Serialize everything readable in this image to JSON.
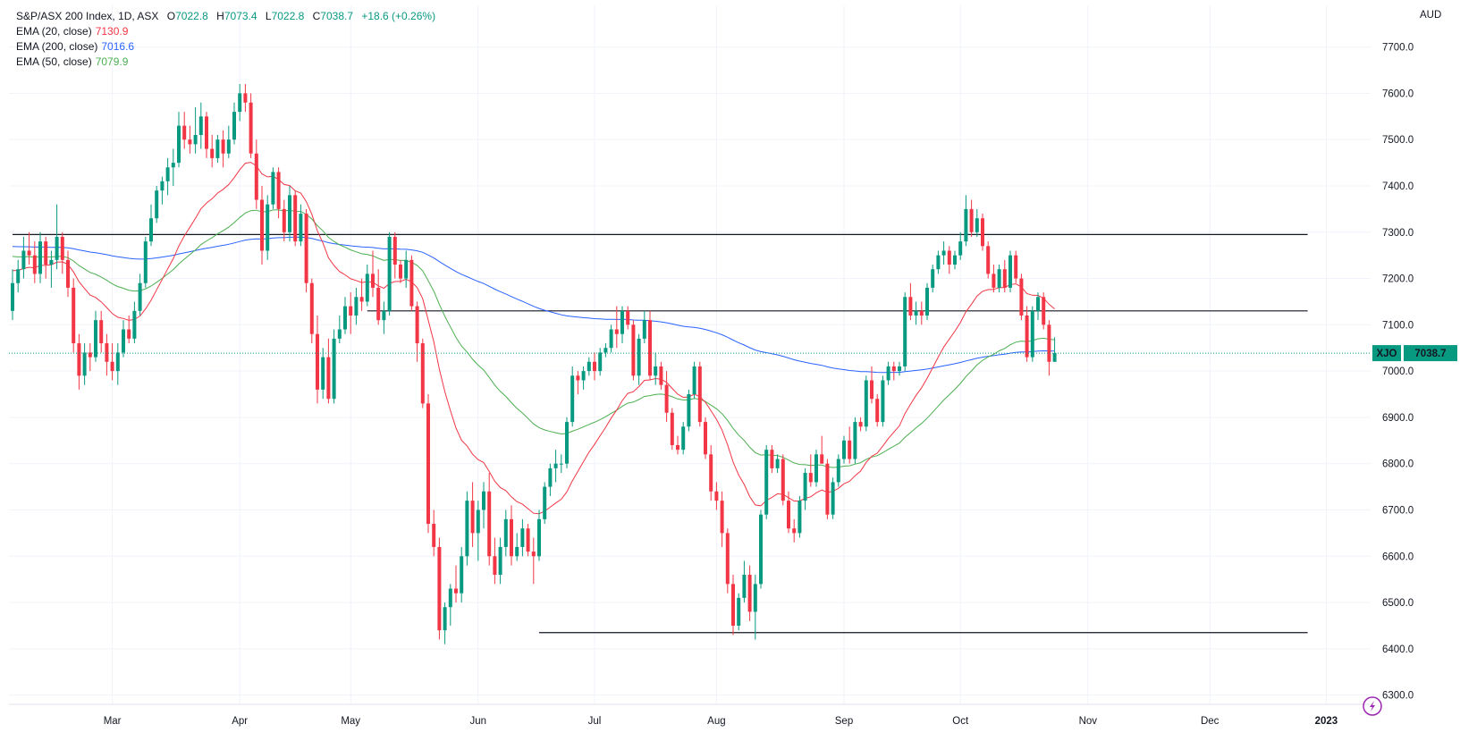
{
  "legend": {
    "title": "S&P/ASX 200 Index, 1D, ASX",
    "ohlc": {
      "o_label": "O",
      "o": "7022.8",
      "h_label": "H",
      "h": "7073.4",
      "l_label": "L",
      "l": "7022.8",
      "c_label": "C",
      "c": "7038.7",
      "change": "+18.6 (+0.26%)"
    },
    "indicators": [
      {
        "label": "EMA (20, close)",
        "value": "7130.9",
        "color": "#f23645"
      },
      {
        "label": "EMA (200, close)",
        "value": "7016.6",
        "color": "#2962ff"
      },
      {
        "label": "EMA (50, close)",
        "value": "7079.9",
        "color": "#4caf50"
      }
    ]
  },
  "chart_data": {
    "type": "candlestick",
    "currency": "AUD",
    "symbol_tag": "XJO",
    "last_price": "7038.7",
    "ylim": [
      6280,
      7790
    ],
    "y_ticks": [
      6300,
      6400,
      6500,
      6600,
      6700,
      6800,
      6900,
      7000,
      7100,
      7200,
      7300,
      7400,
      7500,
      7600,
      7700
    ],
    "x_labels": [
      {
        "label": "Mar",
        "day": 18
      },
      {
        "label": "Apr",
        "day": 41
      },
      {
        "label": "May",
        "day": 61
      },
      {
        "label": "Jun",
        "day": 84
      },
      {
        "label": "Jul",
        "day": 105
      },
      {
        "label": "Aug",
        "day": 127
      },
      {
        "label": "Sep",
        "day": 150
      },
      {
        "label": "Oct",
        "day": 171
      },
      {
        "label": "Nov",
        "day": 194
      },
      {
        "label": "Dec",
        "day": 216
      },
      {
        "label": "2023",
        "day": 237
      }
    ],
    "horizontal_lines": [
      {
        "y": 7295,
        "from": 0,
        "to": 233
      },
      {
        "y": 7130,
        "from": 64,
        "to": 233
      },
      {
        "y": 6435,
        "from": 95,
        "to": 233
      }
    ],
    "colors": {
      "up": "#089981",
      "down": "#f23645",
      "ema20": "#f23645",
      "ema50": "#4caf50",
      "ema200": "#2962ff",
      "grid": "#f0f3fa"
    },
    "candles": [
      [
        7130,
        7220,
        7110,
        7190
      ],
      [
        7190,
        7240,
        7170,
        7220
      ],
      [
        7220,
        7290,
        7200,
        7260
      ],
      [
        7260,
        7300,
        7230,
        7250
      ],
      [
        7250,
        7280,
        7190,
        7210
      ],
      [
        7210,
        7300,
        7190,
        7280
      ],
      [
        7280,
        7290,
        7200,
        7230
      ],
      [
        7230,
        7260,
        7180,
        7240
      ],
      [
        7240,
        7360,
        7220,
        7290
      ],
      [
        7290,
        7300,
        7210,
        7240
      ],
      [
        7240,
        7260,
        7160,
        7180
      ],
      [
        7180,
        7200,
        7040,
        7060
      ],
      [
        7060,
        7080,
        6960,
        6990
      ],
      [
        6990,
        7060,
        6970,
        7040
      ],
      [
        7040,
        7060,
        7000,
        7030
      ],
      [
        7030,
        7130,
        7020,
        7110
      ],
      [
        7110,
        7130,
        7040,
        7060
      ],
      [
        7060,
        7080,
        6990,
        7020
      ],
      [
        7020,
        7060,
        6980,
        7000
      ],
      [
        7000,
        7060,
        6970,
        7040
      ],
      [
        7040,
        7110,
        7030,
        7090
      ],
      [
        7090,
        7120,
        7060,
        7070
      ],
      [
        7070,
        7150,
        7060,
        7130
      ],
      [
        7130,
        7210,
        7120,
        7190
      ],
      [
        7190,
        7290,
        7180,
        7280
      ],
      [
        7280,
        7360,
        7270,
        7330
      ],
      [
        7330,
        7400,
        7320,
        7390
      ],
      [
        7390,
        7420,
        7360,
        7410
      ],
      [
        7410,
        7460,
        7380,
        7440
      ],
      [
        7440,
        7480,
        7400,
        7450
      ],
      [
        7450,
        7560,
        7440,
        7530
      ],
      [
        7530,
        7560,
        7480,
        7500
      ],
      [
        7500,
        7530,
        7470,
        7490
      ],
      [
        7490,
        7570,
        7470,
        7510
      ],
      [
        7510,
        7580,
        7480,
        7550
      ],
      [
        7550,
        7560,
        7460,
        7480
      ],
      [
        7480,
        7510,
        7440,
        7460
      ],
      [
        7460,
        7510,
        7450,
        7500
      ],
      [
        7500,
        7520,
        7440,
        7470
      ],
      [
        7470,
        7530,
        7460,
        7500
      ],
      [
        7500,
        7580,
        7490,
        7560
      ],
      [
        7560,
        7620,
        7540,
        7600
      ],
      [
        7600,
        7620,
        7560,
        7580
      ],
      [
        7580,
        7600,
        7460,
        7470
      ],
      [
        7470,
        7500,
        7350,
        7370
      ],
      [
        7370,
        7400,
        7230,
        7260
      ],
      [
        7260,
        7380,
        7240,
        7360
      ],
      [
        7360,
        7440,
        7350,
        7430
      ],
      [
        7430,
        7440,
        7330,
        7350
      ],
      [
        7350,
        7370,
        7280,
        7300
      ],
      [
        7300,
        7400,
        7280,
        7380
      ],
      [
        7380,
        7390,
        7270,
        7280
      ],
      [
        7280,
        7360,
        7270,
        7340
      ],
      [
        7340,
        7350,
        7170,
        7190
      ],
      [
        7190,
        7200,
        7060,
        7080
      ],
      [
        7080,
        7120,
        6930,
        6960
      ],
      [
        6960,
        7050,
        6940,
        7030
      ],
      [
        7030,
        7070,
        6930,
        6940
      ],
      [
        6940,
        7090,
        6930,
        7070
      ],
      [
        7070,
        7120,
        7060,
        7090
      ],
      [
        7090,
        7160,
        7080,
        7140
      ],
      [
        7140,
        7170,
        7080,
        7120
      ],
      [
        7120,
        7180,
        7100,
        7160
      ],
      [
        7160,
        7200,
        7130,
        7150
      ],
      [
        7150,
        7230,
        7140,
        7210
      ],
      [
        7210,
        7260,
        7160,
        7180
      ],
      [
        7180,
        7220,
        7100,
        7110
      ],
      [
        7110,
        7150,
        7080,
        7130
      ],
      [
        7130,
        7300,
        7120,
        7290
      ],
      [
        7290,
        7300,
        7200,
        7230
      ],
      [
        7230,
        7240,
        7190,
        7200
      ],
      [
        7200,
        7260,
        7180,
        7240
      ],
      [
        7240,
        7250,
        7130,
        7140
      ],
      [
        7140,
        7150,
        7020,
        7060
      ],
      [
        7060,
        7070,
        6920,
        6930
      ],
      [
        6930,
        6950,
        6650,
        6670
      ],
      [
        6670,
        6700,
        6600,
        6620
      ],
      [
        6620,
        6640,
        6420,
        6440
      ],
      [
        6440,
        6500,
        6410,
        6490
      ],
      [
        6490,
        6540,
        6450,
        6530
      ],
      [
        6530,
        6580,
        6500,
        6520
      ],
      [
        6520,
        6620,
        6500,
        6600
      ],
      [
        6600,
        6740,
        6580,
        6720
      ],
      [
        6720,
        6760,
        6620,
        6650
      ],
      [
        6650,
        6720,
        6590,
        6700
      ],
      [
        6700,
        6760,
        6660,
        6740
      ],
      [
        6740,
        6780,
        6580,
        6600
      ],
      [
        6600,
        6640,
        6540,
        6560
      ],
      [
        6560,
        6640,
        6540,
        6620
      ],
      [
        6620,
        6700,
        6600,
        6680
      ],
      [
        6680,
        6710,
        6580,
        6600
      ],
      [
        6600,
        6650,
        6590,
        6620
      ],
      [
        6620,
        6680,
        6600,
        6660
      ],
      [
        6660,
        6670,
        6600,
        6610
      ],
      [
        6610,
        6640,
        6540,
        6600
      ],
      [
        6600,
        6700,
        6590,
        6680
      ],
      [
        6680,
        6760,
        6670,
        6750
      ],
      [
        6750,
        6800,
        6730,
        6790
      ],
      [
        6790,
        6830,
        6760,
        6800
      ],
      [
        6800,
        6820,
        6780,
        6800
      ],
      [
        6800,
        6900,
        6790,
        6890
      ],
      [
        6890,
        7010,
        6880,
        6990
      ],
      [
        6990,
        7000,
        6950,
        6980
      ],
      [
        6980,
        7010,
        6960,
        7000
      ],
      [
        7000,
        7030,
        6990,
        7020
      ],
      [
        7020,
        7040,
        6980,
        7000
      ],
      [
        7000,
        7050,
        6990,
        7040
      ],
      [
        7040,
        7060,
        7030,
        7050
      ],
      [
        7050,
        7100,
        7040,
        7090
      ],
      [
        7090,
        7140,
        7050,
        7080
      ],
      [
        7080,
        7140,
        7060,
        7130
      ],
      [
        7130,
        7140,
        7090,
        7100
      ],
      [
        7100,
        7110,
        6980,
        6990
      ],
      [
        6990,
        7080,
        6970,
        7070
      ],
      [
        7070,
        7130,
        7060,
        7110
      ],
      [
        7110,
        7130,
        6980,
        6990
      ],
      [
        6990,
        7040,
        6970,
        7010
      ],
      [
        7010,
        7020,
        6960,
        6970
      ],
      [
        6970,
        7000,
        6890,
        6910
      ],
      [
        6910,
        6920,
        6830,
        6840
      ],
      [
        6840,
        6860,
        6820,
        6830
      ],
      [
        6830,
        6890,
        6820,
        6880
      ],
      [
        6880,
        6960,
        6870,
        6950
      ],
      [
        6950,
        7020,
        6940,
        7010
      ],
      [
        7010,
        7020,
        6880,
        6890
      ],
      [
        6890,
        6900,
        6810,
        6820
      ],
      [
        6820,
        6840,
        6720,
        6740
      ],
      [
        6740,
        6760,
        6700,
        6720
      ],
      [
        6720,
        6740,
        6620,
        6650
      ],
      [
        6650,
        6660,
        6520,
        6540
      ],
      [
        6540,
        6560,
        6430,
        6450
      ],
      [
        6450,
        6520,
        6440,
        6510
      ],
      [
        6510,
        6590,
        6500,
        6560
      ],
      [
        6560,
        6580,
        6460,
        6480
      ],
      [
        6480,
        6560,
        6420,
        6540
      ],
      [
        6540,
        6700,
        6530,
        6690
      ],
      [
        6690,
        6840,
        6680,
        6830
      ],
      [
        6830,
        6840,
        6780,
        6790
      ],
      [
        6790,
        6820,
        6780,
        6810
      ],
      [
        6810,
        6820,
        6710,
        6720
      ],
      [
        6720,
        6740,
        6650,
        6660
      ],
      [
        6660,
        6680,
        6630,
        6650
      ],
      [
        6650,
        6730,
        6640,
        6720
      ],
      [
        6720,
        6790,
        6700,
        6780
      ],
      [
        6780,
        6820,
        6750,
        6760
      ],
      [
        6760,
        6830,
        6750,
        6820
      ],
      [
        6820,
        6860,
        6800,
        6800
      ],
      [
        6800,
        6810,
        6680,
        6690
      ],
      [
        6690,
        6770,
        6680,
        6760
      ],
      [
        6760,
        6820,
        6750,
        6810
      ],
      [
        6810,
        6860,
        6800,
        6850
      ],
      [
        6850,
        6880,
        6800,
        6810
      ],
      [
        6810,
        6900,
        6800,
        6890
      ],
      [
        6890,
        6900,
        6870,
        6880
      ],
      [
        6880,
        6990,
        6870,
        6980
      ],
      [
        6980,
        7010,
        6930,
        6940
      ],
      [
        6940,
        6950,
        6880,
        6890
      ],
      [
        6890,
        6990,
        6880,
        6980
      ],
      [
        6980,
        7020,
        6970,
        7010
      ],
      [
        7010,
        7020,
        6980,
        7000
      ],
      [
        7000,
        7020,
        6990,
        7010
      ],
      [
        7010,
        7170,
        7000,
        7160
      ],
      [
        7160,
        7190,
        7110,
        7120
      ],
      [
        7120,
        7150,
        7100,
        7130
      ],
      [
        7130,
        7150,
        7100,
        7120
      ],
      [
        7120,
        7190,
        7110,
        7180
      ],
      [
        7180,
        7230,
        7170,
        7220
      ],
      [
        7220,
        7260,
        7210,
        7250
      ],
      [
        7250,
        7280,
        7230,
        7260
      ],
      [
        7260,
        7270,
        7210,
        7230
      ],
      [
        7230,
        7260,
        7220,
        7250
      ],
      [
        7250,
        7300,
        7240,
        7280
      ],
      [
        7280,
        7380,
        7270,
        7350
      ],
      [
        7350,
        7370,
        7290,
        7300
      ],
      [
        7300,
        7350,
        7290,
        7330
      ],
      [
        7330,
        7340,
        7260,
        7270
      ],
      [
        7270,
        7280,
        7200,
        7210
      ],
      [
        7210,
        7230,
        7170,
        7180
      ],
      [
        7180,
        7230,
        7170,
        7220
      ],
      [
        7220,
        7240,
        7170,
        7180
      ],
      [
        7180,
        7260,
        7170,
        7250
      ],
      [
        7250,
        7260,
        7190,
        7200
      ],
      [
        7200,
        7210,
        7110,
        7120
      ],
      [
        7120,
        7140,
        7020,
        7030
      ],
      [
        7030,
        7140,
        7020,
        7130
      ],
      [
        7130,
        7170,
        7110,
        7160
      ],
      [
        7160,
        7170,
        7090,
        7100
      ],
      [
        7100,
        7110,
        6990,
        7020
      ],
      [
        7020,
        7073,
        7020,
        7039
      ]
    ]
  }
}
